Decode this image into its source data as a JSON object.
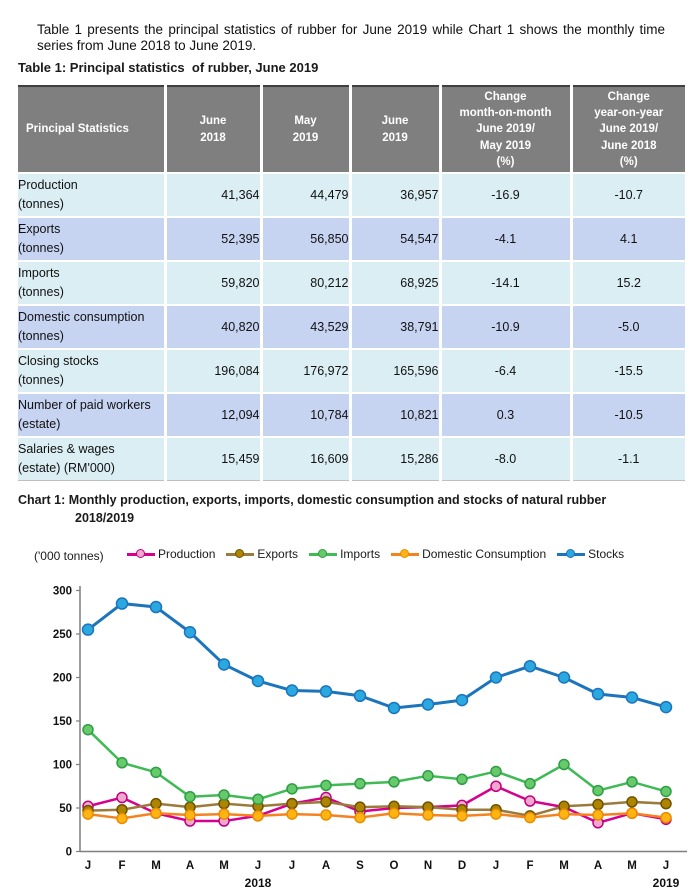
{
  "intro": "Table 1 presents the principal statistics of rubber for June 2019 while Chart 1 shows the monthly time series from June 2018 to June 2019.",
  "table": {
    "title": "Table 1: Principal statistics  of rubber, June 2019",
    "headers": [
      "Principal Statistics",
      "June\n2018",
      "May\n2019",
      "June\n2019",
      "Change\nmonth-on-month\nJune 2019/\nMay 2019\n(%)",
      "Change\nyear-on-year\nJune 2019/\nJune 2018\n(%)"
    ],
    "rows": [
      {
        "label": "Production",
        "sub": "(tonnes)",
        "values": [
          "41,364",
          "44,479",
          "36,957",
          "-16.9",
          "-10.7"
        ]
      },
      {
        "label": "Exports",
        "sub": "(tonnes)",
        "values": [
          "52,395",
          "56,850",
          "54,547",
          "-4.1",
          "4.1"
        ]
      },
      {
        "label": "Imports",
        "sub": "(tonnes)",
        "values": [
          "59,820",
          "80,212",
          "68,925",
          "-14.1",
          "15.2"
        ]
      },
      {
        "label": "Domestic consumption",
        "sub": "(tonnes)",
        "values": [
          "40,820",
          "43,529",
          "38,791",
          "-10.9",
          "-5.0"
        ]
      },
      {
        "label": "Closing stocks",
        "sub": "(tonnes)",
        "values": [
          "196,084",
          "176,972",
          "165,596",
          "-6.4",
          "-15.5"
        ]
      },
      {
        "label": "Number of paid workers",
        "sub": "(estate)",
        "values": [
          "12,094",
          "10,784",
          "10,821",
          "0.3",
          "-10.5"
        ]
      },
      {
        "label": "Salaries & wages",
        "sub": "(estate) (RM'000)",
        "values": [
          "15,459",
          "16,609",
          "15,286",
          "-8.0",
          "-1.1"
        ]
      }
    ]
  },
  "chart": {
    "title_line1": "Chart 1: Monthly production, exports, imports, domestic consumption and stocks of natural rubber",
    "title_line2": "2018/2019",
    "unit_label": "('000 tonnes)"
  },
  "chart_data": {
    "type": "line",
    "title": "Chart 1: Monthly production, exports, imports, domestic consumption and stocks of natural rubber 2018/2019",
    "ylabel": "('000 tonnes)",
    "xlabel": "",
    "grid": false,
    "legend_position": "top",
    "ylim": [
      0,
      300
    ],
    "yticks": [
      0,
      50,
      100,
      150,
      200,
      250,
      300
    ],
    "x": [
      "J",
      "F",
      "M",
      "A",
      "M",
      "J",
      "J",
      "A",
      "S",
      "O",
      "N",
      "D",
      "J",
      "F",
      "M",
      "A",
      "M",
      "J"
    ],
    "x_years": [
      {
        "label": "2018",
        "index": 5
      },
      {
        "label": "2019",
        "index": 17
      }
    ],
    "series": [
      {
        "name": "Production",
        "line_color": "#d6008e",
        "marker_fill": "#f1a8d0",
        "marker_stroke": "#c1007f",
        "values": [
          52,
          62,
          44,
          35,
          35,
          41,
          55,
          62,
          46,
          50,
          51,
          53,
          75,
          58,
          51,
          33,
          44,
          37
        ]
      },
      {
        "name": "Exports",
        "line_color": "#9b7b3b",
        "marker_fill": "#ad8500",
        "marker_stroke": "#6e5200",
        "values": [
          47,
          48,
          55,
          51,
          55,
          52,
          55,
          57,
          51,
          52,
          51,
          48,
          48,
          41,
          52,
          54,
          57,
          55
        ]
      },
      {
        "name": "Imports",
        "line_color": "#3fba55",
        "marker_fill": "#66c96a",
        "marker_stroke": "#2e9e45",
        "values": [
          140,
          102,
          91,
          63,
          65,
          60,
          72,
          76,
          78,
          80,
          87,
          83,
          92,
          78,
          100,
          70,
          80,
          69
        ]
      },
      {
        "name": "Domestic Consumption",
        "line_color": "#f58220",
        "marker_fill": "#ffb414",
        "marker_stroke": "#e88c00",
        "values": [
          43,
          38,
          44,
          42,
          43,
          41,
          43,
          42,
          39,
          44,
          42,
          41,
          43,
          39,
          43,
          42,
          44,
          39
        ]
      },
      {
        "name": "Stocks",
        "line_color": "#1c75bc",
        "marker_fill": "#2ca8e0",
        "marker_stroke": "#1c75bc",
        "values": [
          255,
          285,
          281,
          252,
          215,
          196,
          185,
          184,
          179,
          165,
          169,
          174,
          200,
          213,
          200,
          181,
          177,
          166
        ]
      }
    ]
  }
}
